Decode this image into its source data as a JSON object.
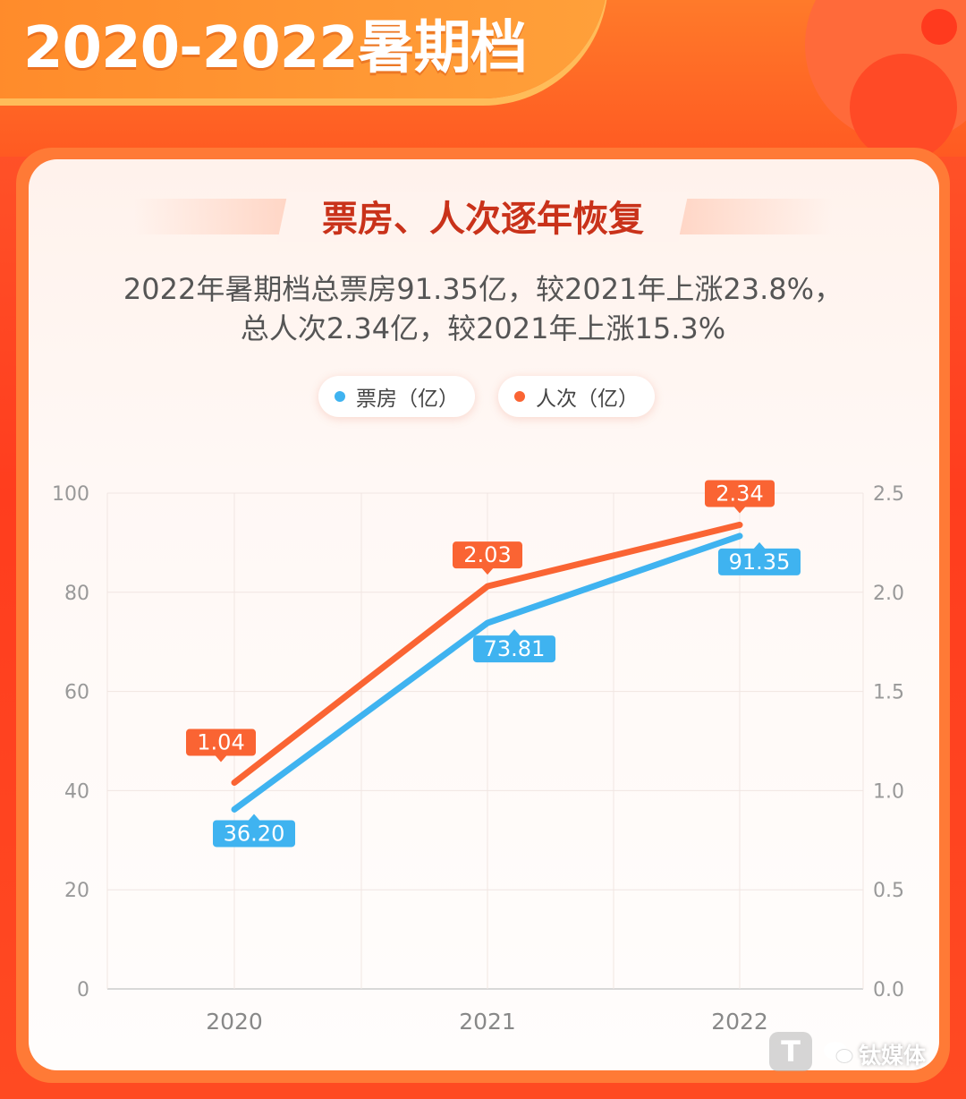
{
  "header": {
    "title": "2020-2022暑期档"
  },
  "panel": {
    "subtitle": "票房、人次逐年恢复",
    "description_line1": "2022年暑期档总票房91.35亿，较2021年上涨23.8%，",
    "description_line2": "总人次2.34亿，较2021年上涨15.3%"
  },
  "watermark": {
    "text": "钛媒体",
    "logo_glyph": "T"
  },
  "colors": {
    "box_office": "#3fb3f0",
    "attendance": "#fa6433",
    "accent": "#ff4a22"
  },
  "chart_data": {
    "type": "line",
    "categories": [
      "2020",
      "2021",
      "2022"
    ],
    "series": [
      {
        "name": "票房（亿）",
        "axis": "left",
        "values": [
          36.2,
          73.81,
          91.35
        ],
        "labels": [
          "36.20",
          "73.81",
          "91.35"
        ]
      },
      {
        "name": "人次（亿）",
        "axis": "right",
        "values": [
          1.04,
          2.03,
          2.34
        ],
        "labels": [
          "1.04",
          "2.03",
          "2.34"
        ]
      }
    ],
    "y_left": {
      "min": 0,
      "max": 100,
      "ticks": [
        "0",
        "20",
        "40",
        "60",
        "80",
        "100"
      ]
    },
    "y_right": {
      "min": 0,
      "max": 2.5,
      "ticks": [
        "0.0",
        "0.5",
        "1.0",
        "1.5",
        "2.0",
        "2.5"
      ]
    },
    "legend_position": "top-center",
    "grid": true
  }
}
